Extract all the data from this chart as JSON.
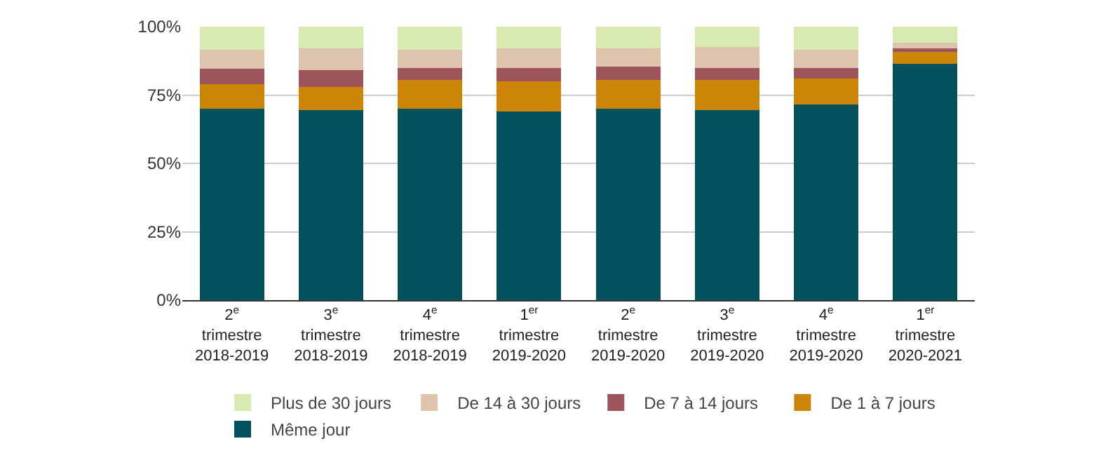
{
  "chart_data": {
    "type": "bar",
    "stacked": true,
    "categories": [
      "2$^{e}$ trimestre 2018-2019",
      "3$^{e}$ trimestre 2018-2019",
      "4$^{e}$ trimestre 2018-2019",
      "1$^{er}$ trimestre 2019-2020",
      "2$^{e}$ trimestre 2019-2020",
      "3$^{e}$ trimestre 2019-2020",
      "4$^{e}$ trimestre 2019-2020",
      "1$^{er}$ trimestre 2020-2021"
    ],
    "series": [
      {
        "name": "Même jour",
        "color": "#03515c",
        "values": [
          70,
          69.5,
          70,
          69,
          70,
          69.5,
          71.5,
          86.5
        ]
      },
      {
        "name": "De 1 à 7 jours",
        "color": "#cc8506",
        "values": [
          9,
          8.5,
          10.5,
          11,
          10.5,
          11,
          9.5,
          4.5
        ]
      },
      {
        "name": "De 7 à 14 jours",
        "color": "#9e545b",
        "values": [
          5.5,
          6,
          4.5,
          5,
          5,
          4.5,
          4,
          1
        ]
      },
      {
        "name": "De 14 à 30 jours",
        "color": "#dfc4ad",
        "values": [
          7,
          8,
          6.5,
          7,
          6.5,
          7.5,
          6.5,
          2
        ]
      },
      {
        "name": "Plus de 30 jours",
        "color": "#d8eab0",
        "values": [
          8.5,
          8,
          8.5,
          8,
          8,
          7.5,
          8.5,
          6
        ]
      }
    ],
    "ylim": [
      0,
      100
    ],
    "yticks": [
      {
        "value": 0,
        "label": "0%"
      },
      {
        "value": 25,
        "label": "25%"
      },
      {
        "value": 50,
        "label": "50%"
      },
      {
        "value": 75,
        "label": "75%"
      },
      {
        "value": 100,
        "label": "100%"
      }
    ],
    "grid": "y",
    "legend": "bottom"
  }
}
